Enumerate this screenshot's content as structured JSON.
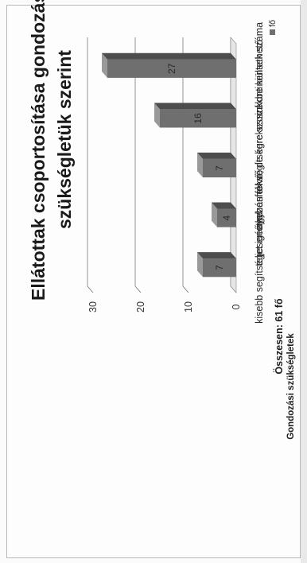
{
  "chart_data": {
    "type": "bar",
    "orientation": "horizontal-3d",
    "title_lines": [
      "Ellátottak csoportosítása gondozási",
      "szükségletük szerint"
    ],
    "categories": [
      "kisebb segítséget igényel",
      "teljesen ágyban fekvő",
      "étkezésnél segítségre szorul",
      "fekvő, de kerekesszékbe kiültethető",
      "inkontinensek száma"
    ],
    "series": [
      {
        "name": "fő",
        "values": [
          7,
          4,
          7,
          16,
          27
        ],
        "color": "#6f6f6f"
      }
    ],
    "data_labels": [
      "7",
      "4",
      "7",
      "16",
      "27"
    ],
    "value_axis": {
      "min": 0,
      "max": 30,
      "ticks": [
        "0",
        "10",
        "20",
        "30"
      ]
    },
    "category_axis_label": "Gondozási szükségletek",
    "grid": true,
    "legend_position": "top-right",
    "note": "Összesen: 61 fő"
  }
}
